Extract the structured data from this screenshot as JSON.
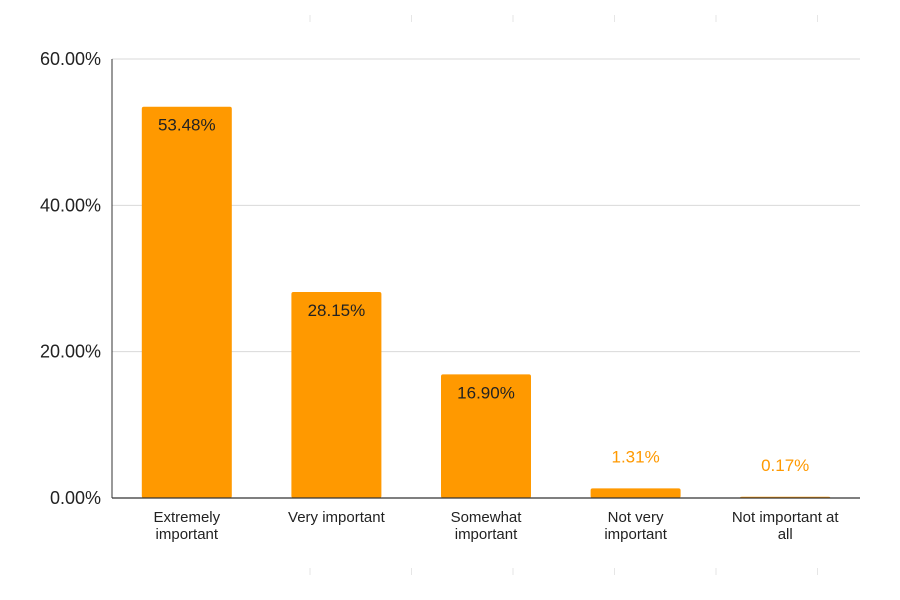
{
  "chart_data": {
    "type": "bar",
    "title": "",
    "xlabel": "",
    "ylabel": "",
    "categories": [
      [
        "Extremely",
        "important"
      ],
      [
        "Very important"
      ],
      [
        "Somewhat",
        "important"
      ],
      [
        "Not very",
        "important"
      ],
      [
        "Not important at",
        "all"
      ]
    ],
    "values": [
      53.48,
      28.15,
      16.9,
      1.31,
      0.17
    ],
    "value_labels": [
      "53.48%",
      "28.15%",
      "16.90%",
      "1.31%",
      "0.17%"
    ],
    "ylim": [
      0,
      60
    ],
    "yticks": [
      0,
      20,
      40,
      60
    ],
    "ytick_labels": [
      "0.00%",
      "20.00%",
      "40.00%",
      "60.00%"
    ],
    "grid": true,
    "legend": "none",
    "colors": {
      "bar": "#ff9900",
      "label_inside": "#222222",
      "label_outside": "#ff9900",
      "grid": "#d9d9d9",
      "axis": "#333333",
      "faint_tick": "#e6e6e6"
    }
  }
}
